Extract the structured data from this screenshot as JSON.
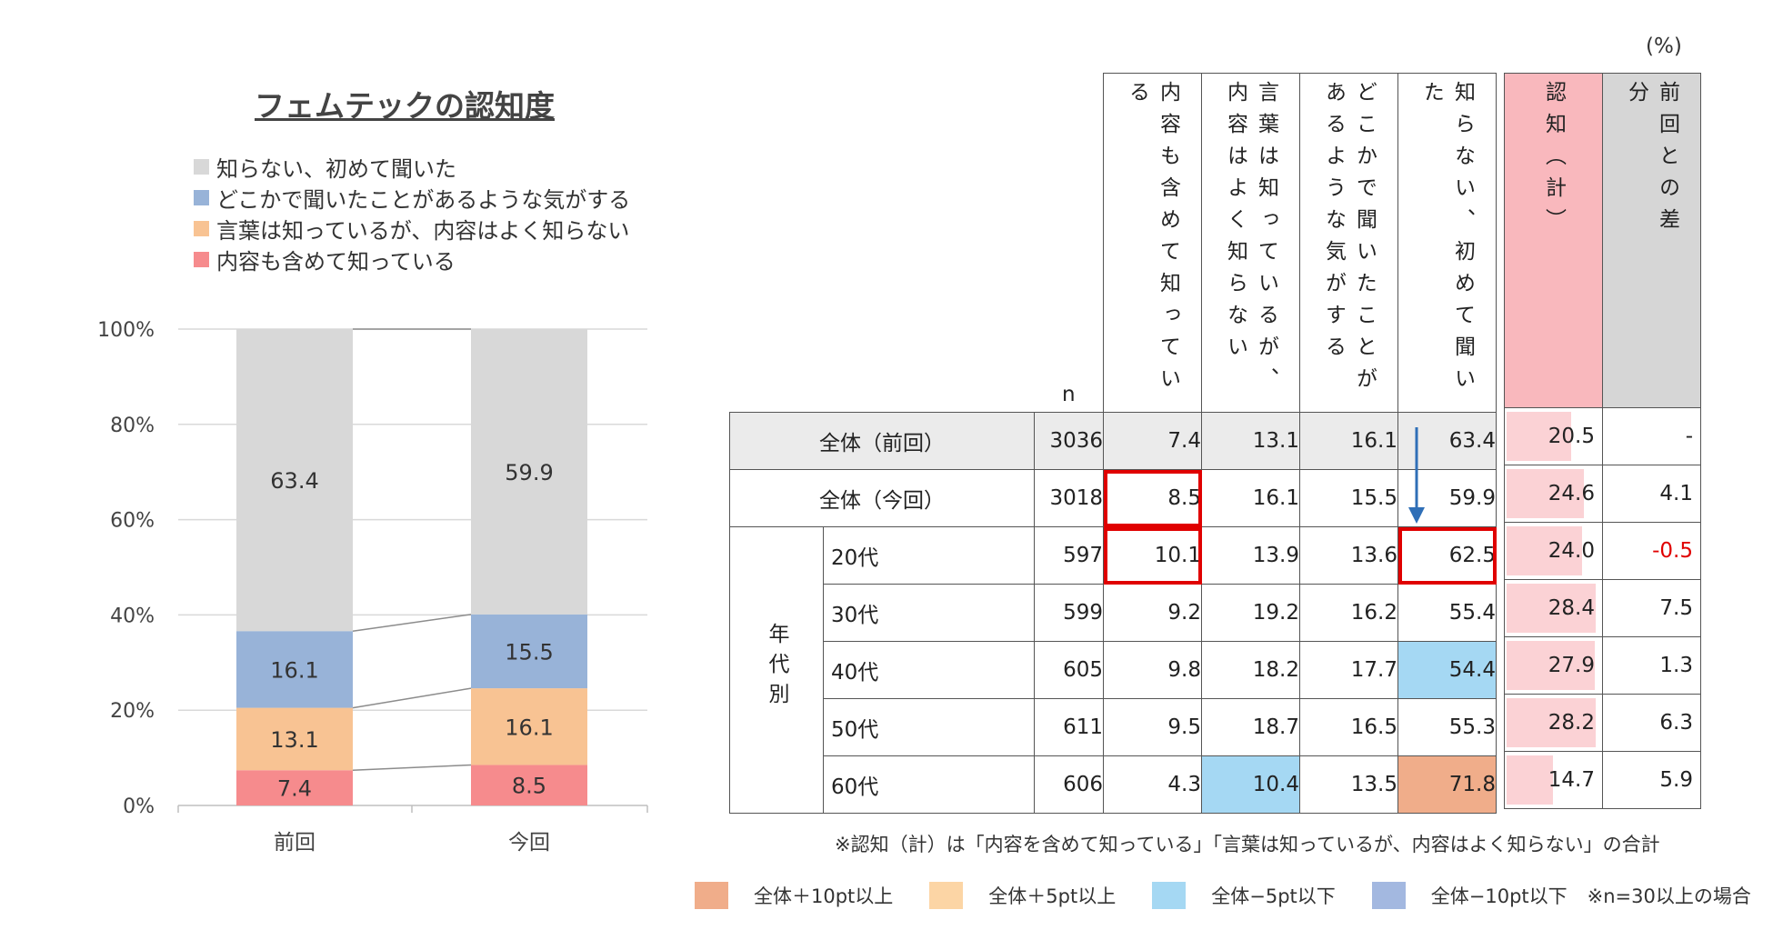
{
  "chart_data": {
    "type": "bar",
    "stacked": true,
    "title": "フェムテックの認知度",
    "categories": [
      "前回",
      "今回"
    ],
    "series": [
      {
        "name": "内容も含めて知っている",
        "values": [
          7.4,
          8.5
        ],
        "color": "#f68b8d"
      },
      {
        "name": "言葉は知っているが、内容はよく知らない",
        "values": [
          13.1,
          16.1
        ],
        "color": "#f8c393"
      },
      {
        "name": "どこかで聞いたことがあるような気がする",
        "values": [
          16.1,
          15.5
        ],
        "color": "#98b3d8"
      },
      {
        "name": "知らない、初めて聞いた",
        "values": [
          63.4,
          59.9
        ],
        "color": "#d8d8d8"
      }
    ],
    "legend_order": [
      "知らない、初めて聞いた",
      "どこかで聞いたことがあるような気がする",
      "言葉は知っているが、内容はよく知らない",
      "内容も含めて知っている"
    ],
    "yticks": [
      "0%",
      "20%",
      "40%",
      "60%",
      "80%",
      "100%"
    ],
    "ylim": [
      0,
      100
    ],
    "grid": true,
    "legend_position": "top-left"
  },
  "table": {
    "unit": "(%)",
    "col_headers": [
      "内容も含めて知っている",
      "言葉は知っているが、内容はよく知らない",
      "どこかで聞いたことがあるような気がする",
      "知らない、初めて聞いた"
    ],
    "n_header": "n",
    "side_headers": [
      "認知（計）",
      "前回との差分"
    ],
    "group_label": "年代別",
    "rows": [
      {
        "label": "全体（前回）",
        "n": "3036",
        "values": [
          "7.4",
          "13.1",
          "16.1",
          "63.4"
        ],
        "ninchi": "20.5",
        "diff": "-"
      },
      {
        "label": "全体（今回）",
        "n": "3018",
        "values": [
          "8.5",
          "16.1",
          "15.5",
          "59.9"
        ],
        "ninchi": "24.6",
        "diff": "4.1"
      },
      {
        "label": "20代",
        "n": "597",
        "values": [
          "10.1",
          "13.9",
          "13.6",
          "62.5"
        ],
        "ninchi": "24.0",
        "diff": "-0.5"
      },
      {
        "label": "30代",
        "n": "599",
        "values": [
          "9.2",
          "19.2",
          "16.2",
          "55.4"
        ],
        "ninchi": "28.4",
        "diff": "7.5"
      },
      {
        "label": "40代",
        "n": "605",
        "values": [
          "9.8",
          "18.2",
          "17.7",
          "54.4"
        ],
        "ninchi": "27.9",
        "diff": "1.3"
      },
      {
        "label": "50代",
        "n": "611",
        "values": [
          "9.5",
          "18.7",
          "16.5",
          "55.3"
        ],
        "ninchi": "28.2",
        "diff": "6.3"
      },
      {
        "label": "60代",
        "n": "606",
        "values": [
          "4.3",
          "10.4",
          "13.5",
          "71.8"
        ],
        "ninchi": "14.7",
        "diff": "5.9"
      }
    ],
    "footnote": "※認知（計）は「内容を含めて知っている」「言葉は知っているが、内容はよく知らない」の合計",
    "conditions": [
      {
        "label": "全体＋10pt以上",
        "color": "#f0ad8a"
      },
      {
        "label": "全体＋5pt以上",
        "color": "#fcd5a5"
      },
      {
        "label": "全体−5pt以下",
        "color": "#a5d8f3"
      },
      {
        "label": "全体−10pt以下",
        "color": "#a3b8e0"
      }
    ],
    "condition_note": "※n=30以上の場合"
  }
}
